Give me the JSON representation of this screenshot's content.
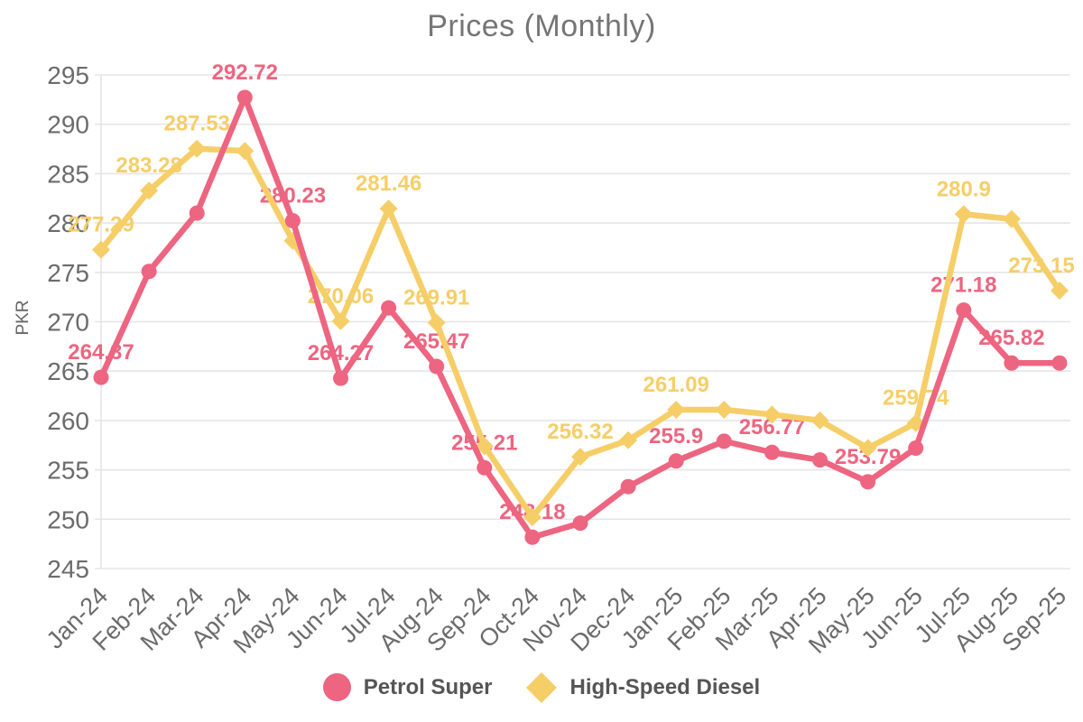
{
  "title": "Prices (Monthly)",
  "chart_data": {
    "type": "line",
    "title": "Prices (Monthly)",
    "xlabel": "",
    "ylabel": "PKR",
    "ylim": [
      245,
      295
    ],
    "yticks": [
      295,
      290,
      285,
      280,
      275,
      270,
      265,
      260,
      255,
      250,
      245
    ],
    "grid": "horizontal-only",
    "legend_position": "bottom",
    "colors": {
      "title": "#757575",
      "axis_text": "#6b6b6b",
      "grid": "#e5e5e5",
      "legend_text": "#555555"
    },
    "categories": [
      "Jan-24",
      "Feb-24",
      "Mar-24",
      "Apr-24",
      "May-24",
      "Jun-24",
      "Jul-24",
      "Aug-24",
      "Sep-24",
      "Oct-24",
      "Nov-24",
      "Dec-24",
      "Jan-25",
      "Feb-25",
      "Mar-25",
      "Apr-25",
      "May-25",
      "Jun-25",
      "Jul-25",
      "Aug-25",
      "Sep-25"
    ],
    "series": [
      {
        "name": "Petrol Super",
        "marker": "circle",
        "color": "#ED6580",
        "values": [
          264.37,
          275.1,
          281.0,
          292.72,
          280.23,
          264.27,
          271.4,
          265.47,
          255.21,
          248.18,
          249.6,
          253.3,
          255.9,
          257.9,
          256.77,
          256.0,
          253.79,
          257.2,
          271.18,
          265.82,
          265.82
        ],
        "point_labels": [
          "264.37",
          null,
          null,
          "292.72",
          "280.23",
          "264.27",
          null,
          "265.47",
          "255.21",
          "248.18",
          null,
          null,
          "255.9",
          null,
          "256.77",
          null,
          "253.79",
          null,
          "271.18",
          "265.82",
          null
        ]
      },
      {
        "name": "High-Speed Diesel",
        "marker": "diamond",
        "color": "#F6CE68",
        "values": [
          277.29,
          283.28,
          287.53,
          287.3,
          278.2,
          270.06,
          281.46,
          269.91,
          257.4,
          250.2,
          256.32,
          258.0,
          261.09,
          261.09,
          260.6,
          260.0,
          257.2,
          259.74,
          280.9,
          280.4,
          273.15
        ],
        "point_labels": [
          "277.29",
          "283.28",
          "287.53",
          null,
          null,
          "270.06",
          "281.46",
          "269.91",
          null,
          null,
          "256.32",
          null,
          "261.09",
          null,
          null,
          null,
          null,
          "259.74",
          "280.9",
          null,
          "273.15"
        ]
      }
    ]
  }
}
